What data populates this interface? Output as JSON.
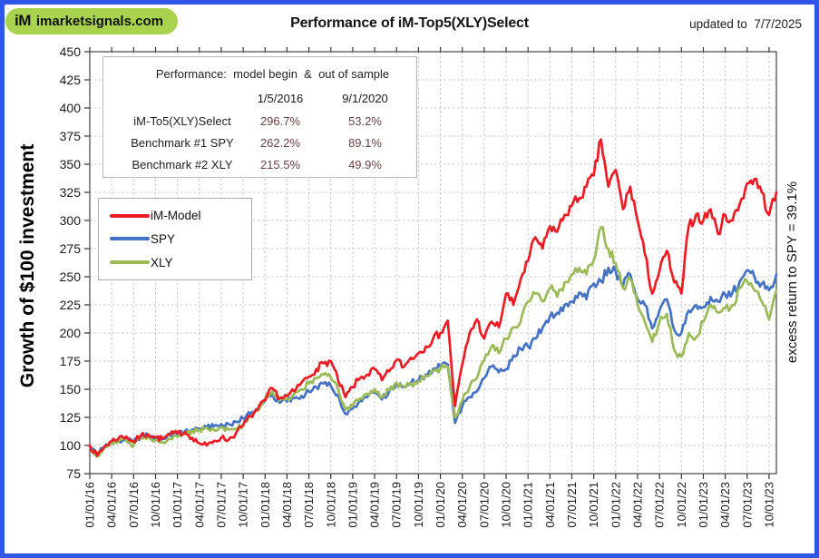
{
  "page": {
    "border_color": "#3056e8",
    "background": "#ffffff"
  },
  "header": {
    "logo_im": "iM",
    "logo_text": "imarketsignals.com",
    "logo_bg": "#a9d34f",
    "title": "Performance of iM-Top5(XLY)Select",
    "updated": "updated to  7/7/2025"
  },
  "stats_table": {
    "heading": "Performance:  model begin  &  out of sample",
    "col_dates": [
      "1/5/2016",
      "9/1/2020"
    ],
    "rows": [
      {
        "label": "iM-To5(XLY)Select",
        "v1": "296.7%",
        "v2": "53.2%"
      },
      {
        "label": "Benchmark #1 SPY",
        "v1": "262.2%",
        "v2": "89.1%"
      },
      {
        "label": "Benchmark #2 XLY",
        "v1": "215.5%",
        "v2": "49.9%"
      }
    ],
    "value_color": "#6d4141"
  },
  "legend": {
    "items": [
      {
        "label": "iM-Model",
        "color": "#ed1c24"
      },
      {
        "label": "SPY",
        "color": "#4472c4"
      },
      {
        "label": "XLY",
        "color": "#9bbb59"
      }
    ]
  },
  "y_axis": {
    "title": "Growth of $100 investment",
    "min": 75,
    "max": 450,
    "step": 25
  },
  "right_label": "excess return to SPY = 39.1%",
  "chart_data": {
    "type": "line",
    "x_start": "2016-01",
    "x_interval": "monthly",
    "ylim": [
      75,
      450
    ],
    "grid": true,
    "legend_position": "upper-left-inside",
    "x_tick_labels": [
      "01/01/16",
      "04/01/16",
      "07/01/16",
      "10/01/16",
      "01/01/17",
      "04/01/17",
      "07/01/17",
      "10/01/17",
      "01/01/18",
      "04/01/18",
      "07/01/18",
      "10/01/18",
      "01/01/19",
      "04/01/19",
      "07/01/19",
      "10/01/19",
      "01/01/20",
      "04/01/20",
      "07/01/20",
      "10/01/20",
      "01/01/21",
      "04/01/21",
      "07/01/21",
      "10/01/21",
      "01/01/22",
      "04/01/22",
      "07/01/22",
      "10/01/22",
      "01/01/23",
      "04/01/23",
      "07/01/23",
      "10/01/23"
    ],
    "months_per_tick": 3,
    "series": [
      {
        "name": "iM-Model",
        "color": "#ed1c24",
        "values": [
          100,
          91,
          99,
          104,
          107,
          108,
          103,
          109,
          110,
          107,
          106,
          110,
          111,
          112,
          107,
          102,
          100,
          104,
          107,
          105,
          111,
          118,
          126,
          132,
          140,
          151,
          142,
          144,
          148,
          156,
          161,
          168,
          173,
          175,
          158,
          143,
          152,
          160,
          163,
          168,
          158,
          166,
          176,
          170,
          178,
          182,
          188,
          195,
          200,
          211,
          135,
          172,
          200,
          212,
          195,
          210,
          205,
          235,
          225,
          248,
          264,
          285,
          275,
          295,
          290,
          305,
          313,
          320,
          330,
          340,
          372,
          330,
          345,
          310,
          330,
          300,
          270,
          235,
          255,
          273,
          245,
          235,
          295,
          305,
          300,
          310,
          288,
          305,
          300,
          315,
          333,
          337,
          325,
          305,
          325
        ]
      },
      {
        "name": "SPY",
        "color": "#4472c4",
        "values": [
          100,
          93,
          99,
          103,
          104,
          105,
          103,
          108,
          109,
          107,
          106,
          109,
          110,
          112,
          114,
          115,
          116,
          117,
          119,
          119,
          121,
          124,
          128,
          131,
          140,
          146,
          138,
          139,
          142,
          144,
          148,
          152,
          155,
          153,
          145,
          128,
          133,
          140,
          143,
          147,
          141,
          148,
          155,
          152,
          156,
          158,
          163,
          168,
          170,
          172,
          120,
          135,
          143,
          148,
          160,
          170,
          165,
          168,
          180,
          186,
          188,
          195,
          205,
          215,
          218,
          225,
          228,
          236,
          230,
          244,
          246,
          258,
          255,
          242,
          252,
          230,
          225,
          204,
          220,
          230,
          203,
          200,
          220,
          225,
          223,
          232,
          228,
          234,
          236,
          246,
          256,
          250,
          244,
          238,
          252
        ]
      },
      {
        "name": "XLY",
        "color": "#9bbb59",
        "values": [
          100,
          90,
          98,
          103,
          105,
          104,
          100,
          107,
          108,
          105,
          103,
          106,
          108,
          110,
          113,
          114,
          116,
          114,
          116,
          114,
          115,
          118,
          126,
          131,
          142,
          148,
          140,
          142,
          146,
          150,
          155,
          160,
          163,
          160,
          150,
          132,
          135,
          142,
          146,
          150,
          143,
          149,
          156,
          152,
          155,
          157,
          162,
          166,
          168,
          170,
          125,
          140,
          152,
          160,
          176,
          188,
          182,
          195,
          205,
          210,
          228,
          235,
          228,
          240,
          232,
          245,
          252,
          258,
          252,
          265,
          294,
          275,
          262,
          240,
          248,
          225,
          210,
          192,
          210,
          217,
          185,
          179,
          200,
          196,
          210,
          225,
          218,
          222,
          225,
          240,
          246,
          238,
          228,
          212,
          238
        ]
      }
    ]
  }
}
